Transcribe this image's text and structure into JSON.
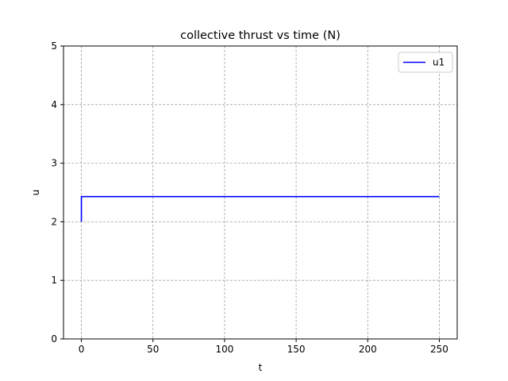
{
  "chart_data": {
    "type": "line",
    "title": "collective thrust vs time (N)",
    "xlabel": "t",
    "ylabel": "u",
    "xlim": [
      -12.5,
      262.5
    ],
    "ylim": [
      0,
      5
    ],
    "xticks": [
      0,
      50,
      100,
      150,
      200,
      250
    ],
    "yticks": [
      0,
      1,
      2,
      3,
      4,
      5
    ],
    "grid": true,
    "legend_position": "top-right",
    "series": [
      {
        "name": "u1",
        "color": "#0000ff",
        "x": [
          0,
          0,
          250
        ],
        "y": [
          2.0,
          2.43,
          2.43
        ]
      }
    ]
  }
}
